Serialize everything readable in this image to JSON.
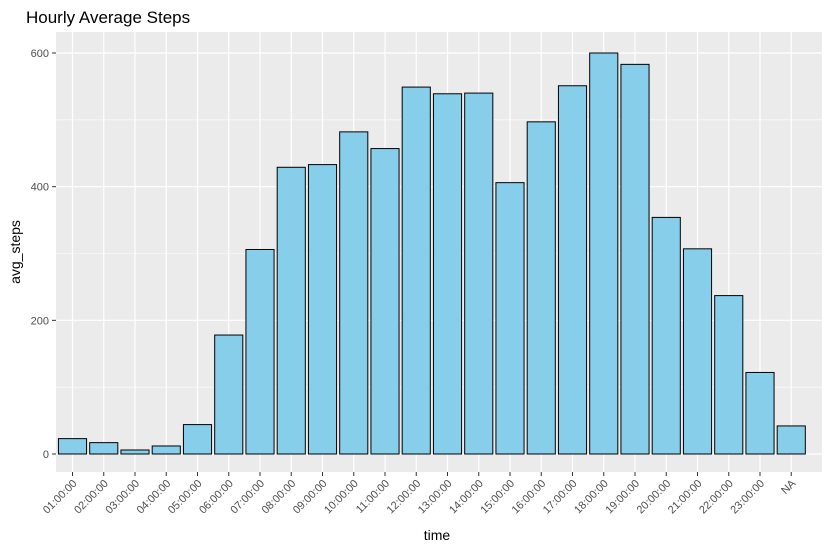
{
  "chart_data": {
    "type": "bar",
    "title": "Hourly Average Steps",
    "xlabel": "time",
    "ylabel": "avg_steps",
    "categories": [
      "01:00:00",
      "02:00:00",
      "03:00:00",
      "04:00:00",
      "05:00:00",
      "06:00:00",
      "07:00:00",
      "08:00:00",
      "09:00:00",
      "10:00:00",
      "11:00:00",
      "12:00:00",
      "13:00:00",
      "14:00:00",
      "15:00:00",
      "16:00:00",
      "17:00:00",
      "18:00:00",
      "19:00:00",
      "20:00:00",
      "21:00:00",
      "22:00:00",
      "23:00:00",
      "NA"
    ],
    "values": [
      23,
      17,
      6,
      12,
      44,
      178,
      306,
      429,
      433,
      482,
      457,
      549,
      539,
      540,
      406,
      497,
      551,
      600,
      583,
      354,
      307,
      237,
      122,
      42
    ],
    "ylim": [
      0,
      640
    ],
    "yticks": [
      0,
      200,
      400,
      600
    ],
    "grid": true,
    "colors": {
      "bar_fill": "#87CEEB",
      "bar_stroke": "#000000",
      "panel": "#EBEBEB",
      "grid": "#FFFFFF"
    }
  }
}
